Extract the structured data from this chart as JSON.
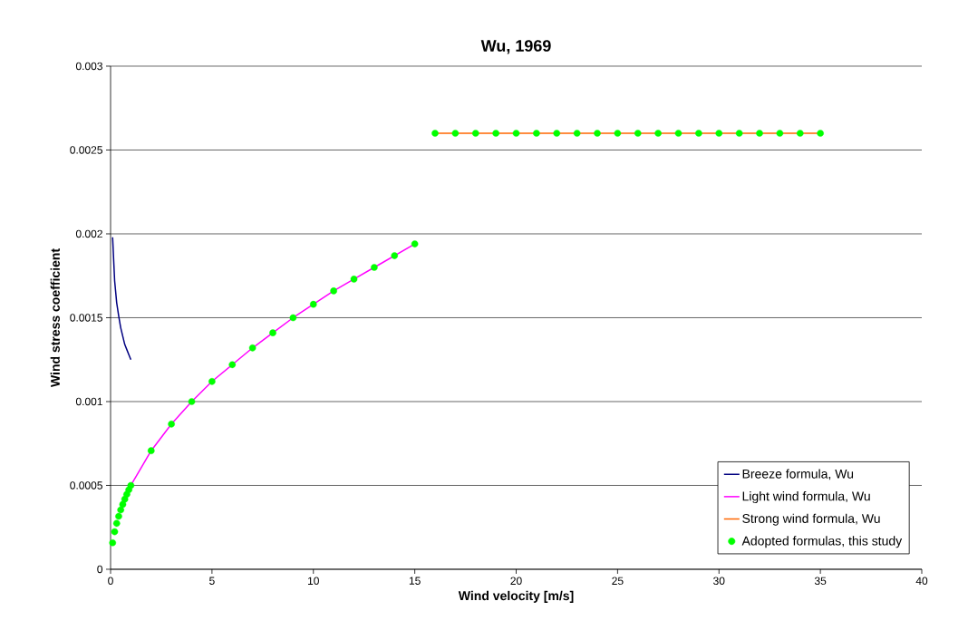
{
  "chart_data": {
    "type": "line",
    "title": "Wu, 1969",
    "xlabel": "Wind velocity [m/s]",
    "ylabel": "Wind stress coefficient",
    "xlim": [
      0,
      40
    ],
    "ylim": [
      0,
      0.003
    ],
    "xticks": [
      0,
      5,
      10,
      15,
      20,
      25,
      30,
      35,
      40
    ],
    "yticks": [
      0,
      0.0005,
      0.001,
      0.0015,
      0.002,
      0.0025,
      0.003
    ],
    "grid": "y",
    "legend": "bottom right",
    "series": [
      {
        "name": "Breeze formula, Wu",
        "color": "#000080",
        "x": [
          0.1,
          0.2,
          0.3,
          0.4,
          0.5,
          0.6,
          0.7,
          0.8,
          0.9,
          1
        ],
        "values": [
          0.00198,
          0.00172,
          0.00159,
          0.00151,
          0.00144,
          0.00139,
          0.00134,
          0.00131,
          0.00128,
          0.00125
        ]
      },
      {
        "name": "Light wind formula, Wu",
        "color": "#ff00ff",
        "x": [
          1,
          2,
          3,
          4,
          5,
          6,
          7,
          8,
          9,
          10,
          11,
          12,
          13,
          14,
          15
        ],
        "values": [
          0.0005,
          0.000707,
          0.000866,
          0.001,
          0.00112,
          0.00122,
          0.00132,
          0.00141,
          0.0015,
          0.00158,
          0.00166,
          0.00173,
          0.0018,
          0.00187,
          0.00194
        ]
      },
      {
        "name": "Strong wind formula, Wu",
        "color": "#ff6600",
        "x": [
          16,
          35
        ],
        "values": [
          0.0026,
          0.0026
        ]
      },
      {
        "name": "Adopted formulas, this study",
        "color": "#00ff00",
        "type": "scatter",
        "marker": "circle",
        "x": [
          0.1,
          0.2,
          0.3,
          0.4,
          0.5,
          0.6,
          0.7,
          0.8,
          0.9,
          1,
          2,
          3,
          4,
          5,
          6,
          7,
          8,
          9,
          10,
          11,
          12,
          13,
          14,
          15,
          16,
          17,
          18,
          19,
          20,
          21,
          22,
          23,
          24,
          25,
          26,
          27,
          28,
          29,
          30,
          31,
          32,
          33,
          34,
          35
        ],
        "values": [
          0.000158,
          0.000224,
          0.000274,
          0.000316,
          0.000354,
          0.000387,
          0.000418,
          0.000447,
          0.000474,
          0.0005,
          0.000707,
          0.000866,
          0.001,
          0.00112,
          0.00122,
          0.00132,
          0.00141,
          0.0015,
          0.00158,
          0.00166,
          0.00173,
          0.0018,
          0.00187,
          0.00194,
          0.0026,
          0.0026,
          0.0026,
          0.0026,
          0.0026,
          0.0026,
          0.0026,
          0.0026,
          0.0026,
          0.0026,
          0.0026,
          0.0026,
          0.0026,
          0.0026,
          0.0026,
          0.0026,
          0.0026,
          0.0026,
          0.0026,
          0.0026
        ]
      }
    ]
  }
}
